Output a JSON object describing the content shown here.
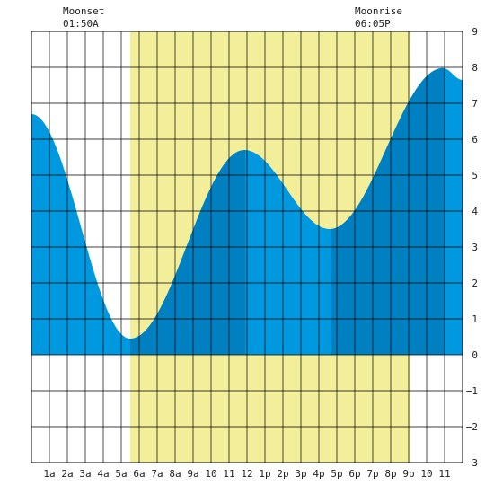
{
  "chart_data": {
    "type": "area",
    "title": "",
    "xlabel": "",
    "ylabel": "",
    "x_unit": "hour of day",
    "xlim": [
      0,
      24
    ],
    "ylim": [
      -3,
      9
    ],
    "x_tick_labels": [
      "1a",
      "2a",
      "3a",
      "4a",
      "5a",
      "6a",
      "7a",
      "8a",
      "9a",
      "10",
      "11",
      "12",
      "1p",
      "2p",
      "3p",
      "4p",
      "5p",
      "6p",
      "7p",
      "8p",
      "9p",
      "10",
      "11"
    ],
    "y_tick_labels": [
      "-3",
      "-2",
      "-1",
      "0",
      "1",
      "2",
      "3",
      "4",
      "5",
      "6",
      "7",
      "8",
      "9"
    ],
    "grid": true,
    "daylight": {
      "start": 5.5,
      "end": 21.08,
      "color": "#f2ee9a"
    },
    "annotations": [
      {
        "name": "moonset",
        "label": "Moonset",
        "time": "01:50A"
      },
      {
        "name": "moonrise",
        "label": "Moonrise",
        "time": "06:05P"
      }
    ],
    "tide_extremes": [
      {
        "x": 0.0,
        "y": 6.7
      },
      {
        "x": 5.5,
        "y": 0.45
      },
      {
        "x": 11.85,
        "y": 5.7
      },
      {
        "x": 16.6,
        "y": 3.5
      },
      {
        "x": 22.9,
        "y": 7.98
      },
      {
        "x": 24.0,
        "y": 7.65
      }
    ],
    "bands": [
      {
        "from": 0,
        "to": 5.5,
        "color": "#0099e0"
      },
      {
        "from": 5.5,
        "to": 11.93,
        "color": "#0080c0"
      },
      {
        "from": 11.93,
        "to": 16.7,
        "color": "#0099e0"
      },
      {
        "from": 16.7,
        "to": 22.98,
        "color": "#0080c0"
      },
      {
        "from": 22.98,
        "to": 24,
        "color": "#0099e0"
      }
    ]
  }
}
